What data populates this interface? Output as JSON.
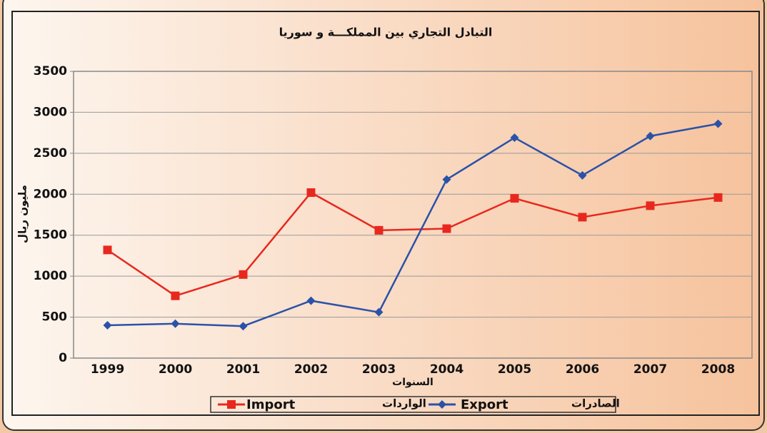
{
  "chart_data": {
    "type": "line",
    "title": "التبادل التجاري بين المملكـــة و سوريا",
    "y_label": "مليون ريال",
    "x_label": "السنوات",
    "categories": [
      "1999",
      "2000",
      "2001",
      "2002",
      "2003",
      "2004",
      "2005",
      "2006",
      "2007",
      "2008"
    ],
    "series": [
      {
        "name": "Import",
        "name_ar": "الواردات",
        "color": "#e8281e",
        "marker": "square",
        "values": [
          1320,
          760,
          1020,
          2020,
          1560,
          1580,
          1950,
          1720,
          1860,
          1960
        ]
      },
      {
        "name": "Export",
        "name_ar": "الصادرات",
        "color": "#2a52a8",
        "marker": "diamond",
        "values": [
          400,
          420,
          390,
          700,
          560,
          2180,
          2690,
          2230,
          2710,
          2860
        ]
      }
    ],
    "ylim": [
      0,
      3500
    ],
    "yticks": [
      0,
      500,
      1000,
      1500,
      2000,
      2500,
      3000,
      3500
    ],
    "grid": true,
    "legend": "bottom"
  }
}
